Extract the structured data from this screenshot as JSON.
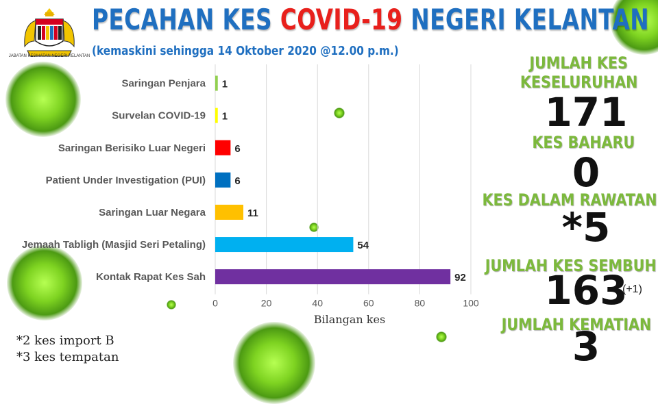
{
  "header": {
    "title_part1": "PECAHAN KES ",
    "title_part2": "COVID-19",
    "title_part3": " NEGERI KELANTAN",
    "subtitle": "(kemaskini sehingga 14 Oktober 2020 @12.00 p.m.)",
    "department": "JABATAN KESIHATAN NEGERI KELANTAN",
    "logo_motto": "BERSEKUTU BERTAMBAH MUTU"
  },
  "chart_data": {
    "type": "bar",
    "orientation": "horizontal",
    "categories": [
      "Saringan Penjara",
      "Survelan COVID-19",
      "Saringan Berisiko Luar Negeri",
      "Patient Under Investigation (PUI)",
      "Saringan Luar Negara",
      "Jemaah Tabligh (Masjid Seri Petaling)",
      "Kontak Rapat Kes Sah"
    ],
    "values": [
      1,
      1,
      6,
      6,
      11,
      54,
      92
    ],
    "colors": [
      "#92d050",
      "#ffff00",
      "#ff0000",
      "#0070c0",
      "#ffc000",
      "#00b0f0",
      "#7030a0"
    ],
    "xlabel": "Bilangan kes",
    "ylabel": "",
    "xlim": [
      0,
      100
    ],
    "ticks": [
      0,
      20,
      40,
      60,
      80,
      100
    ],
    "grid": true,
    "legend": "none"
  },
  "notes": [
    "*2 kes import B",
    "*3 kes tempatan"
  ],
  "stats": {
    "total_label_1": "JUMLAH KES",
    "total_label_2": "KESELURUHAN",
    "total_value": "171",
    "new_label": "KES BAHARU",
    "new_value": "0",
    "treatment_label": "KES DALAM RAWATAN",
    "treatment_value": "*5",
    "recovered_label": "JUMLAH KES SEMBUH",
    "recovered_value": "163",
    "recovered_delta": "(+1)",
    "deaths_label": "JUMLAH KEMATIAN",
    "deaths_value": "3"
  },
  "colors": {
    "title_blue": "#1f6fc0",
    "title_red": "#e8201c",
    "stat_green": "#7cb93c"
  }
}
